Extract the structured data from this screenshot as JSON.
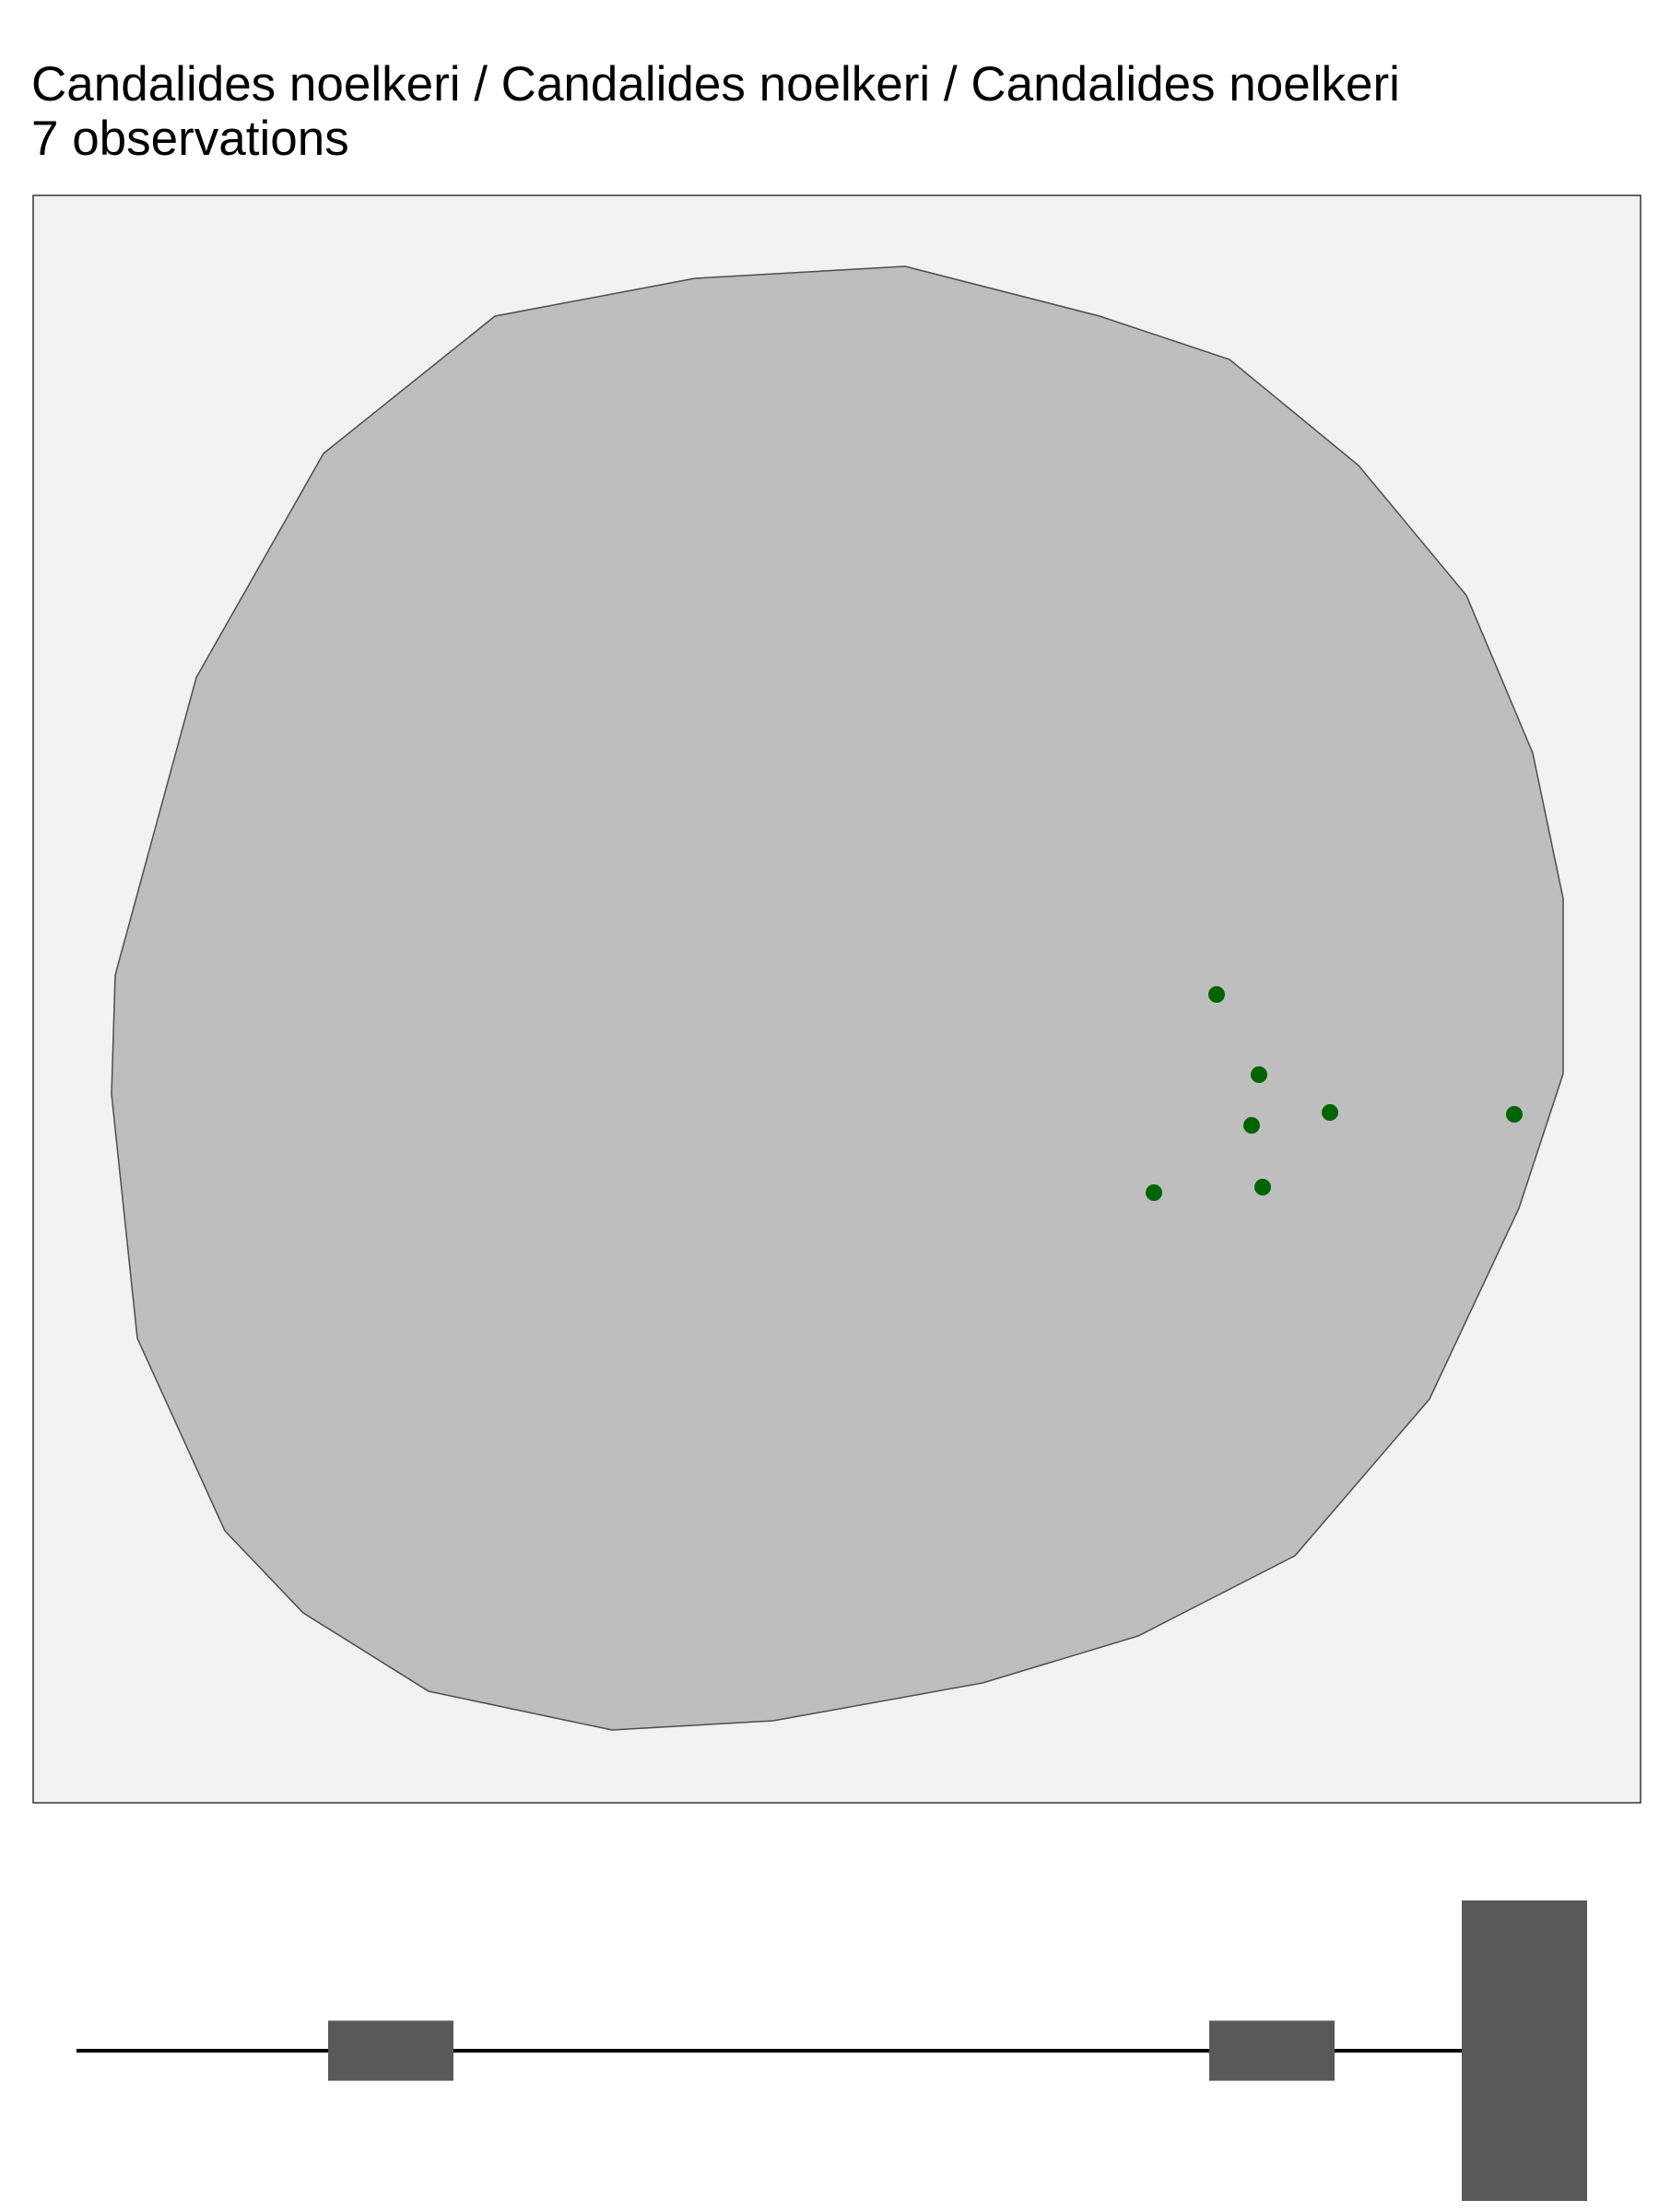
{
  "header": {
    "title": "Candalides noelkeri / Candalides noelkeri / Candalides noelkeri",
    "subtitle": "7 observations"
  },
  "colors": {
    "panel_background": "#f2f2f2",
    "range_fill": "#bebebe",
    "range_outline": "#4d4d4d",
    "observation_point": "#006400",
    "timeline_bar": "#595959",
    "timeline_line": "#000000"
  },
  "map": {
    "observation_count": 7
  },
  "timeline": {
    "bar_count": 3,
    "bars": [
      {
        "relative_height": 0.2
      },
      {
        "relative_height": 0.2
      },
      {
        "relative_height": 1.0
      }
    ]
  }
}
